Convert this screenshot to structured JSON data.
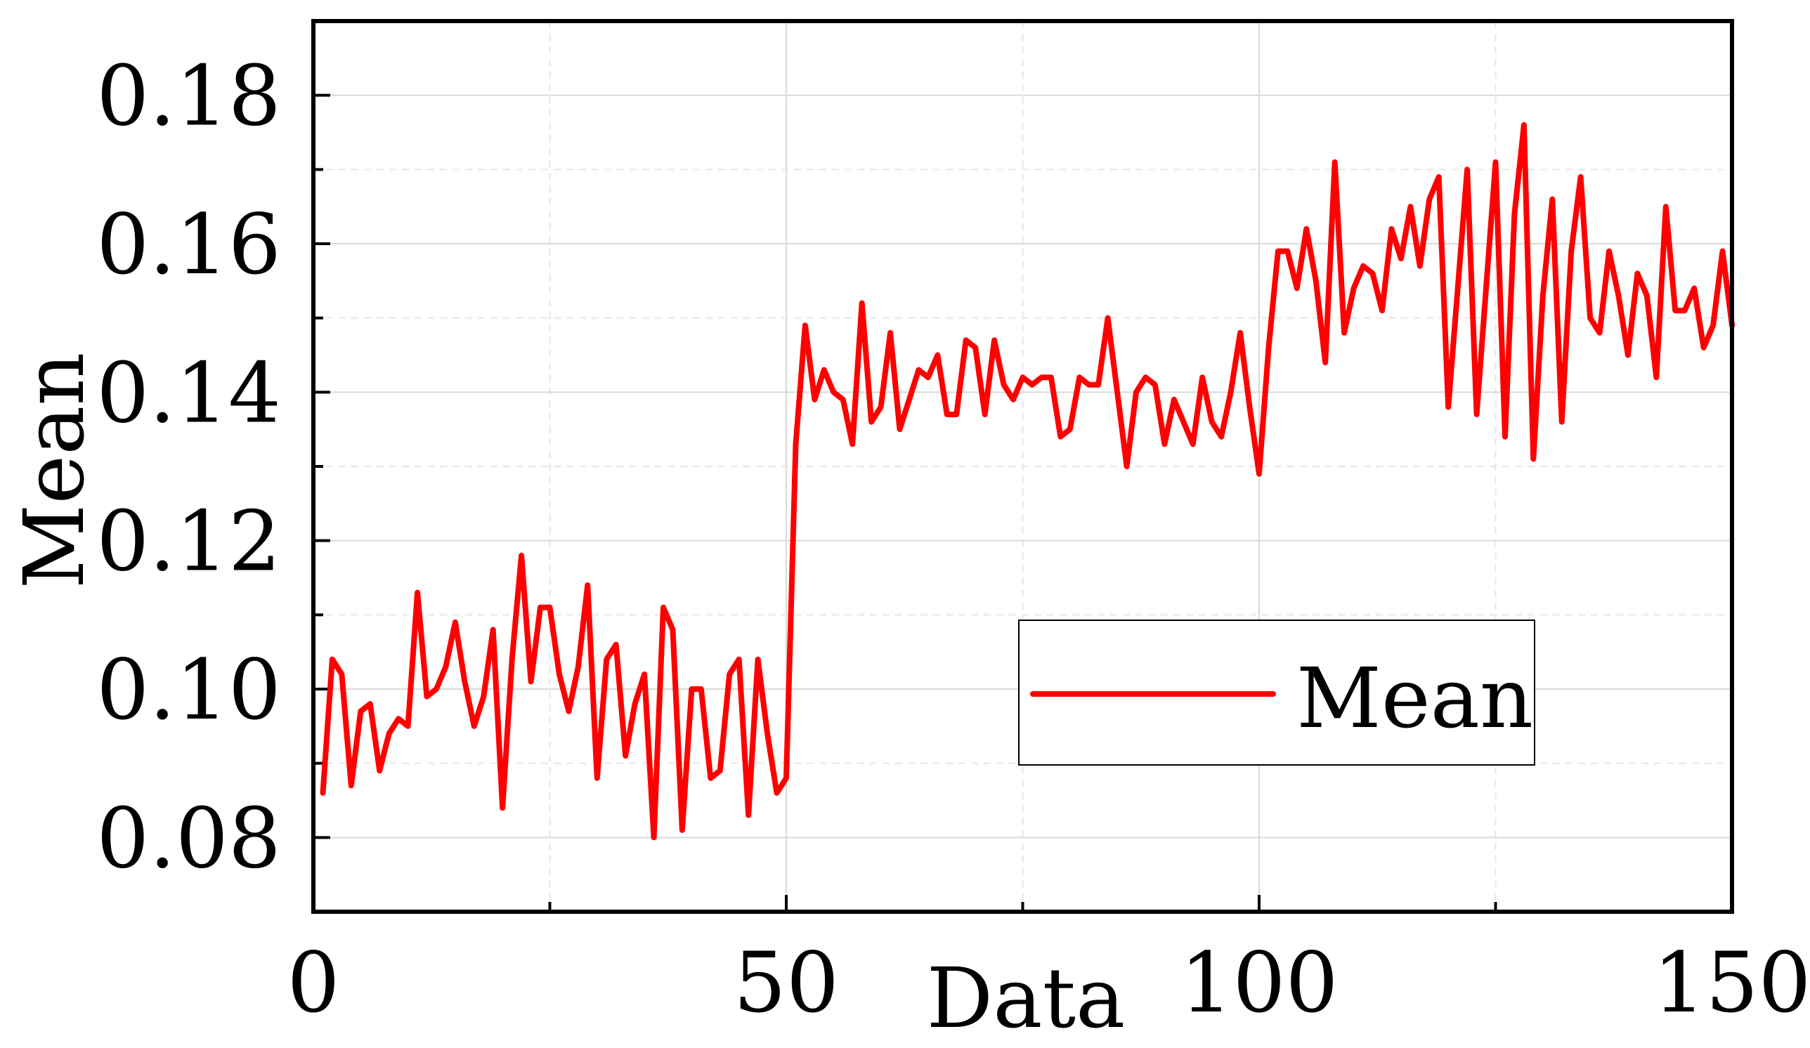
{
  "chart_data": {
    "type": "line",
    "title": "",
    "xlabel": "Data",
    "ylabel": "Mean",
    "xlim": [
      0,
      150
    ],
    "ylim": [
      0.07,
      0.19
    ],
    "x_ticks": [
      0,
      50,
      100,
      150
    ],
    "x_tick_labels": [
      "0",
      "50",
      "100",
      "150"
    ],
    "y_ticks": [
      0.08,
      0.1,
      0.12,
      0.14,
      0.16,
      0.18
    ],
    "y_tick_labels": [
      "0.08",
      "0.10",
      "0.12",
      "0.14",
      "0.16",
      "0.18"
    ],
    "grid": true,
    "legend_position": "lower-right",
    "series": [
      {
        "name": "Mean",
        "color": "#ff0000",
        "x": [
          1,
          2,
          3,
          4,
          5,
          6,
          7,
          8,
          9,
          10,
          11,
          12,
          13,
          14,
          15,
          16,
          17,
          18,
          19,
          20,
          21,
          22,
          23,
          24,
          25,
          26,
          27,
          28,
          29,
          30,
          31,
          32,
          33,
          34,
          35,
          36,
          37,
          38,
          39,
          40,
          41,
          42,
          43,
          44,
          45,
          46,
          47,
          48,
          49,
          50,
          51,
          52,
          53,
          54,
          55,
          56,
          57,
          58,
          59,
          60,
          61,
          62,
          63,
          64,
          65,
          66,
          67,
          68,
          69,
          70,
          71,
          72,
          73,
          74,
          75,
          76,
          77,
          78,
          79,
          80,
          81,
          82,
          83,
          84,
          85,
          86,
          87,
          88,
          89,
          90,
          91,
          92,
          93,
          94,
          95,
          96,
          97,
          98,
          99,
          100,
          101,
          102,
          103,
          104,
          105,
          106,
          107,
          108,
          109,
          110,
          111,
          112,
          113,
          114,
          115,
          116,
          117,
          118,
          119,
          120,
          121,
          122,
          123,
          124,
          125,
          126,
          127,
          128,
          129,
          130,
          131,
          132,
          133,
          134,
          135,
          136,
          137,
          138,
          139,
          140,
          141,
          142,
          143,
          144,
          145,
          146,
          147,
          148,
          149,
          150
        ],
        "values": [
          0.086,
          0.104,
          0.102,
          0.087,
          0.097,
          0.098,
          0.089,
          0.094,
          0.096,
          0.095,
          0.113,
          0.099,
          0.1,
          0.103,
          0.109,
          0.101,
          0.095,
          0.099,
          0.108,
          0.084,
          0.104,
          0.118,
          0.101,
          0.111,
          0.111,
          0.102,
          0.097,
          0.103,
          0.114,
          0.088,
          0.104,
          0.106,
          0.091,
          0.098,
          0.102,
          0.08,
          0.111,
          0.108,
          0.081,
          0.1,
          0.1,
          0.088,
          0.089,
          0.102,
          0.104,
          0.083,
          0.104,
          0.094,
          0.086,
          0.088,
          0.133,
          0.149,
          0.139,
          0.143,
          0.14,
          0.139,
          0.133,
          0.152,
          0.136,
          0.138,
          0.148,
          0.135,
          0.139,
          0.143,
          0.142,
          0.145,
          0.137,
          0.137,
          0.147,
          0.146,
          0.137,
          0.147,
          0.141,
          0.139,
          0.142,
          0.141,
          0.142,
          0.142,
          0.134,
          0.135,
          0.142,
          0.141,
          0.141,
          0.15,
          0.14,
          0.13,
          0.14,
          0.142,
          0.141,
          0.133,
          0.139,
          0.136,
          0.133,
          0.142,
          0.136,
          0.134,
          0.14,
          0.148,
          0.138,
          0.129,
          0.146,
          0.159,
          0.159,
          0.154,
          0.162,
          0.155,
          0.144,
          0.171,
          0.148,
          0.154,
          0.157,
          0.156,
          0.151,
          0.162,
          0.158,
          0.165,
          0.157,
          0.166,
          0.169,
          0.138,
          0.154,
          0.17,
          0.137,
          0.154,
          0.171,
          0.134,
          0.164,
          0.176,
          0.131,
          0.153,
          0.166,
          0.136,
          0.159,
          0.169,
          0.15,
          0.148,
          0.159,
          0.153,
          0.145,
          0.156,
          0.153,
          0.142,
          0.165,
          0.151,
          0.151,
          0.154,
          0.146,
          0.149,
          0.159,
          0.149
        ]
      }
    ]
  }
}
